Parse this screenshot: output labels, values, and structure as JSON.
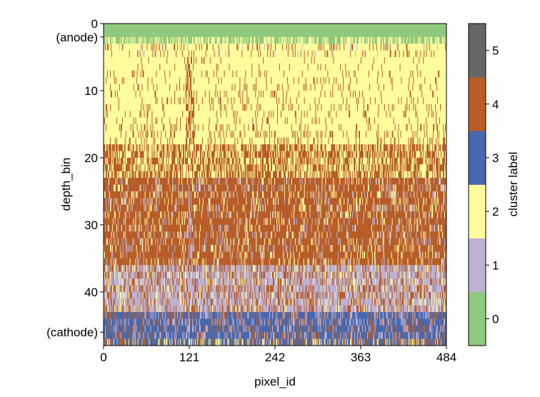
{
  "chart_data": {
    "type": "heatmap",
    "title": "",
    "xlabel": "pixel_id",
    "ylabel": "depth_bin",
    "colorbar_label": "cluster label",
    "x_range": [
      0,
      484
    ],
    "y_range": [
      0,
      48
    ],
    "y_inverted": true,
    "x_ticks": [
      {
        "value": 0,
        "label": "0"
      },
      {
        "value": 121,
        "label": "121"
      },
      {
        "value": 242,
        "label": "242"
      },
      {
        "value": 363,
        "label": "363"
      },
      {
        "value": 484,
        "label": "484"
      }
    ],
    "y_ticks": [
      {
        "value": 0,
        "label": "0"
      },
      {
        "value": 10,
        "label": "10"
      },
      {
        "value": 20,
        "label": "20"
      },
      {
        "value": 30,
        "label": "30"
      },
      {
        "value": 40,
        "label": "40"
      }
    ],
    "y_annotations": [
      {
        "value": 2,
        "label": "(anode)"
      },
      {
        "value": 46,
        "label": "(cathode)"
      }
    ],
    "clusters": [
      {
        "label": "0",
        "color": "#8fc97e"
      },
      {
        "label": "1",
        "color": "#bdb1d6"
      },
      {
        "label": "2",
        "color": "#fdfd9e"
      },
      {
        "label": "3",
        "color": "#4768af"
      },
      {
        "label": "4",
        "color": "#b85d27"
      },
      {
        "label": "5",
        "color": "#666666"
      }
    ],
    "dominant_bands": [
      {
        "depth_from": 0,
        "depth_to": 3,
        "cluster": 0
      },
      {
        "depth_from": 3,
        "depth_to": 18,
        "cluster": 2
      },
      {
        "depth_from": 18,
        "depth_to": 36,
        "cluster": 4
      },
      {
        "depth_from": 36,
        "depth_to": 43,
        "cluster": 1
      },
      {
        "depth_from": 43,
        "depth_to": 48,
        "cluster": 3
      }
    ]
  }
}
